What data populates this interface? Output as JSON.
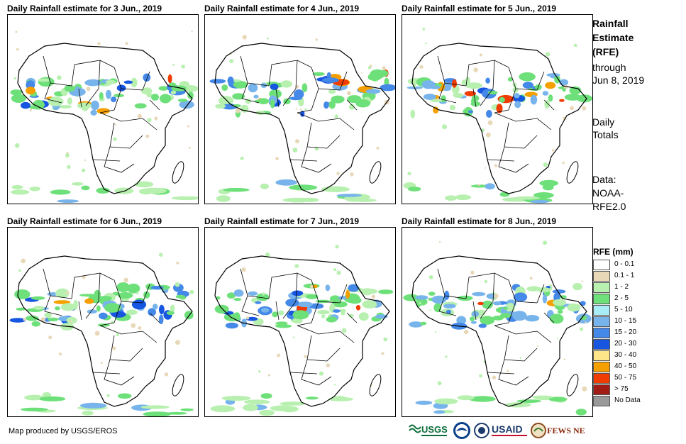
{
  "panels": [
    {
      "title": "Daily Rainfall estimate for 3 Jun., 2019"
    },
    {
      "title": "Daily Rainfall estimate for 4 Jun., 2019"
    },
    {
      "title": "Daily Rainfall estimate for 5 Jun., 2019"
    },
    {
      "title": "Daily Rainfall estimate for 6 Jun., 2019"
    },
    {
      "title": "Daily Rainfall estimate for 7 Jun., 2019"
    },
    {
      "title": "Daily Rainfall estimate for 8 Jun., 2019"
    }
  ],
  "sidebar": {
    "title1": "Rainfall",
    "title2": "Estimate",
    "title3": "(RFE)",
    "through1": "through",
    "through2": "Jun 8, 2019",
    "daily1": "Daily",
    "daily2": "Totals",
    "data1": "Data:",
    "data2": "NOAA-",
    "data3": "RFE2.0"
  },
  "legend": {
    "title": "RFE (mm)",
    "items": [
      {
        "label": "0 - 0.1",
        "color": "#ffffff"
      },
      {
        "label": "0.1 - 1",
        "color": "#e8d8b8"
      },
      {
        "label": "1 - 2",
        "color": "#b8f0b0"
      },
      {
        "label": "2 - 5",
        "color": "#6ee07a"
      },
      {
        "label": "5 - 10",
        "color": "#a8ecf5"
      },
      {
        "label": "10 - 15",
        "color": "#78b4ec"
      },
      {
        "label": "15 - 20",
        "color": "#4488e8"
      },
      {
        "label": "20 - 30",
        "color": "#1656e0"
      },
      {
        "label": "30 - 40",
        "color": "#fde68a"
      },
      {
        "label": "40 - 50",
        "color": "#f5a000"
      },
      {
        "label": "50 - 75",
        "color": "#f03c00"
      },
      {
        "label": "> 75",
        "color": "#a01c14"
      },
      {
        "label": "No Data",
        "color": "#999999"
      }
    ]
  },
  "footer": {
    "credit": "Map produced by USGS/EROS",
    "logo_usgs": "USGS",
    "logo_usaid": "USAID",
    "logo_fews": "FEWS NET"
  }
}
